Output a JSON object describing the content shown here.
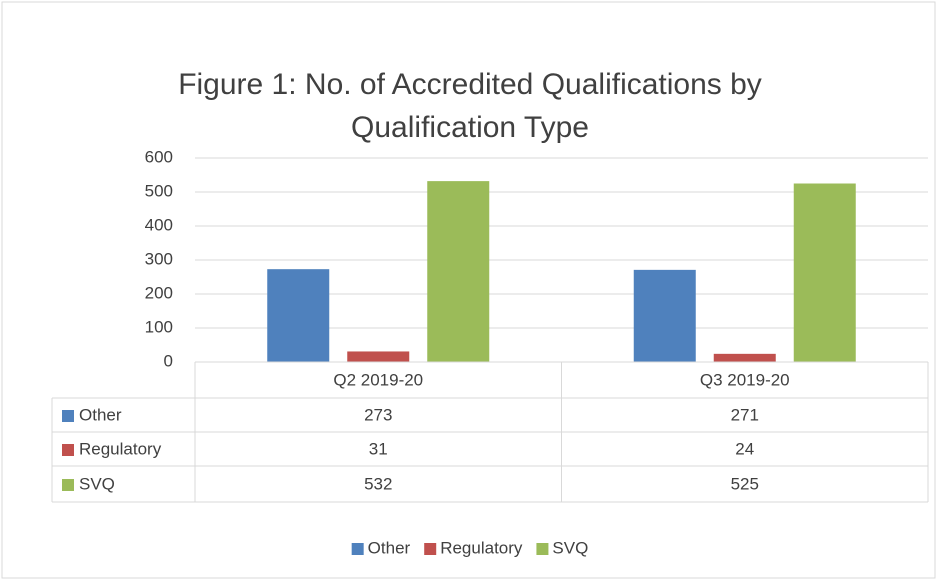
{
  "chart_data": {
    "type": "bar",
    "title": [
      "Figure 1: No. of Accredited Qualifications by",
      "Qualification Type"
    ],
    "categories": [
      "Q2 2019-20",
      "Q3 2019-20"
    ],
    "series": [
      {
        "name": "Other",
        "color": "#4f81bd",
        "values": [
          273,
          271
        ]
      },
      {
        "name": "Regulatory",
        "color": "#c0504d",
        "values": [
          31,
          24
        ]
      },
      {
        "name": "SVQ",
        "color": "#9bbb59",
        "values": [
          532,
          525
        ]
      }
    ],
    "ylim": [
      0,
      600
    ],
    "yticks": [
      0,
      100,
      200,
      300,
      400,
      500,
      600
    ],
    "grid": true,
    "data_table": true,
    "legend": "bottom"
  }
}
